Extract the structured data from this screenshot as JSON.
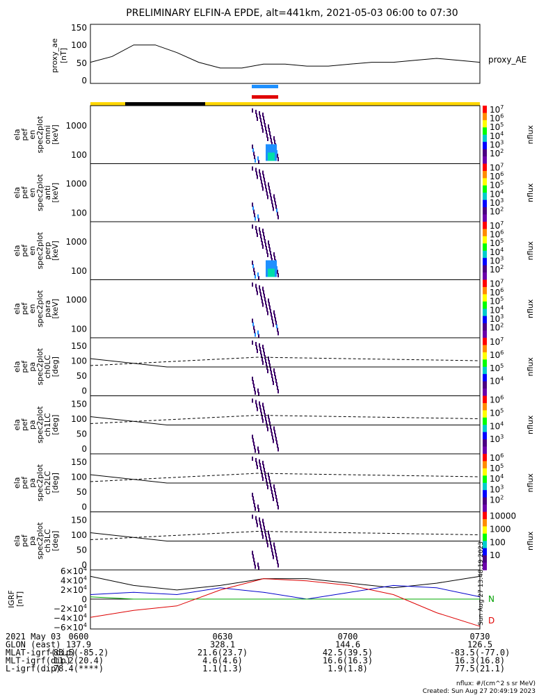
{
  "title": "PRELIMINARY ELFIN-A EPDE, alt=441km, 2021-05-03 06:00 to 07:30",
  "colors": {
    "sci_zone_blue": "#1e90ff",
    "sci_zone_red": "#e00000",
    "orbit_yellow": "#ffd700",
    "orbit_black": "#000000",
    "grf_N": "#00a000",
    "grf_D": "#e00000",
    "grf_blue": "#0000cc",
    "grf_green": "#00aa00",
    "grf_red": "#dd0000"
  },
  "panels": {
    "ae": {
      "ylabel_lines": [
        "proxy_ae",
        "[nT]"
      ],
      "yticks": [
        "150",
        "100",
        "50",
        "0"
      ],
      "series_label": "proxy_AE"
    },
    "en_omni": {
      "ylabel_lines": [
        "ela",
        "pef",
        "en",
        "spec2plot",
        "omni",
        "[keV]"
      ],
      "yticks": [
        "1000",
        "100"
      ],
      "cbar_ticks": [
        "10^7",
        "10^6",
        "10^5",
        "10^4",
        "10^3",
        "10^2"
      ],
      "cbar_label": "nflux"
    },
    "en_anti": {
      "ylabel_lines": [
        "ela",
        "pef",
        "en",
        "spec2plot",
        "anti",
        "[keV]"
      ],
      "yticks": [
        "1000",
        "100"
      ],
      "cbar_ticks": [
        "10^7",
        "10^6",
        "10^5",
        "10^4",
        "10^3",
        "10^2"
      ],
      "cbar_label": "nflux"
    },
    "en_perp": {
      "ylabel_lines": [
        "ela",
        "pef",
        "en",
        "spec2plot",
        "perp",
        "[keV]"
      ],
      "yticks": [
        "1000",
        "100"
      ],
      "cbar_ticks": [
        "10^7",
        "10^6",
        "10^5",
        "10^4",
        "10^3",
        "10^2"
      ],
      "cbar_label": "nflux"
    },
    "en_para": {
      "ylabel_lines": [
        "ela",
        "pef",
        "en",
        "spec2plot",
        "para",
        "[keV]"
      ],
      "yticks": [
        "1000",
        "100"
      ],
      "cbar_ticks": [
        "10^7",
        "10^6",
        "10^5",
        "10^4",
        "10^3",
        "10^2"
      ],
      "cbar_label": "nflux"
    },
    "pa_ch0": {
      "ylabel_lines": [
        "ela",
        "pef",
        "pa",
        "spec2plot",
        "ch0LC",
        "[deg]"
      ],
      "yticks": [
        "150",
        "100",
        "50",
        "0"
      ],
      "cbar_ticks": [
        "10^7",
        "10^6",
        "10^5",
        "10^4"
      ],
      "cbar_label": "nflux"
    },
    "pa_ch1": {
      "ylabel_lines": [
        "ela",
        "pef",
        "pa",
        "spec2plot",
        "ch1LC",
        "[deg]"
      ],
      "yticks": [
        "150",
        "100",
        "50",
        "0"
      ],
      "cbar_ticks": [
        "10^6",
        "10^5",
        "10^4",
        "10^3"
      ],
      "cbar_label": "nflux"
    },
    "pa_ch2": {
      "ylabel_lines": [
        "ela",
        "pef",
        "pa",
        "spec2plot",
        "ch2LC",
        "[deg]"
      ],
      "yticks": [
        "150",
        "100",
        "50",
        "0"
      ],
      "cbar_ticks": [
        "10^6",
        "10^5",
        "10^4",
        "10^3",
        "10^2"
      ],
      "cbar_label": "nflux"
    },
    "pa_ch3": {
      "ylabel_lines": [
        "ela",
        "pef",
        "pa",
        "spec2plot",
        "ch3LC",
        "[deg]"
      ],
      "yticks": [
        "150",
        "100",
        "50",
        "0"
      ],
      "cbar_ticks": [
        "10000",
        "1000",
        "100",
        "10"
      ],
      "cbar_label": "nflux"
    },
    "grf": {
      "ylabel_lines": [
        "IGRF",
        "[nT]"
      ],
      "yticks": [
        "6×10^4",
        "4×10^4",
        "2×10^4",
        "0",
        "−2×10^4",
        "−4×10^4",
        "−6×10^4"
      ],
      "legend": [
        "N",
        "D"
      ],
      "side_note": "Sun Aug 27 13:48:19 2023"
    }
  },
  "footer": {
    "rows": [
      {
        "label": "2021 May 03",
        "vals": [
          "0600",
          "0630",
          "0700",
          "0730"
        ]
      },
      {
        "label": "GLON (east)",
        "vals": [
          "137.9",
          "328.1",
          "144.6",
          "126.5"
        ]
      },
      {
        "label": "MLAT-igrf(dip)",
        "vals": [
          "-83.5(-85.2)",
          "21.6(23.7)",
          "42.5(39.5)",
          "-83.5(-77.0)"
        ]
      },
      {
        "label": "MLT-igrf(dip)",
        "vals": [
          "11.2(20.4)",
          "4.6(4.6)",
          "16.6(16.3)",
          "16.3(16.8)"
        ]
      },
      {
        "label": "L-igrf(dip)",
        "vals": [
          "78.4(****)",
          "1.1(1.3)",
          "1.9(1.8)",
          "77.5(21.1)"
        ]
      }
    ],
    "nflux_units": "nflux: #/(cm^2 s sr MeV)",
    "created": "Created: Sun Aug 27 20:49:19 2023"
  },
  "chart_data": {
    "type": "line",
    "x_range": [
      "06:00",
      "07:30"
    ],
    "x_ticks": [
      "0600",
      "0630",
      "0700",
      "0730"
    ],
    "proxy_ae": {
      "times_min": [
        0,
        5,
        10,
        15,
        20,
        25,
        30,
        35,
        40,
        45,
        50,
        55,
        60,
        65,
        70,
        75,
        80,
        85,
        90
      ],
      "values": [
        55,
        70,
        100,
        100,
        80,
        55,
        40,
        40,
        50,
        50,
        45,
        45,
        50,
        55,
        55,
        60,
        65,
        60,
        55
      ],
      "ylim": [
        0,
        150
      ]
    },
    "igrf": {
      "times_min": [
        0,
        10,
        20,
        30,
        40,
        50,
        60,
        70,
        80,
        90
      ],
      "series": [
        {
          "color": "black",
          "values": [
            50000,
            30000,
            20000,
            30000,
            45000,
            45000,
            35000,
            25000,
            35000,
            50000
          ]
        },
        {
          "color": "blue",
          "values": [
            10000,
            15000,
            10000,
            25000,
            15000,
            0,
            15000,
            30000,
            25000,
            5000
          ]
        },
        {
          "color": "green",
          "values": [
            5000,
            0,
            0,
            0,
            0,
            0,
            0,
            0,
            0,
            0
          ]
        },
        {
          "color": "red",
          "values": [
            -40000,
            -25000,
            -15000,
            20000,
            45000,
            40000,
            30000,
            10000,
            -30000,
            -60000
          ]
        }
      ],
      "ylim": [
        -65000,
        65000
      ]
    }
  }
}
